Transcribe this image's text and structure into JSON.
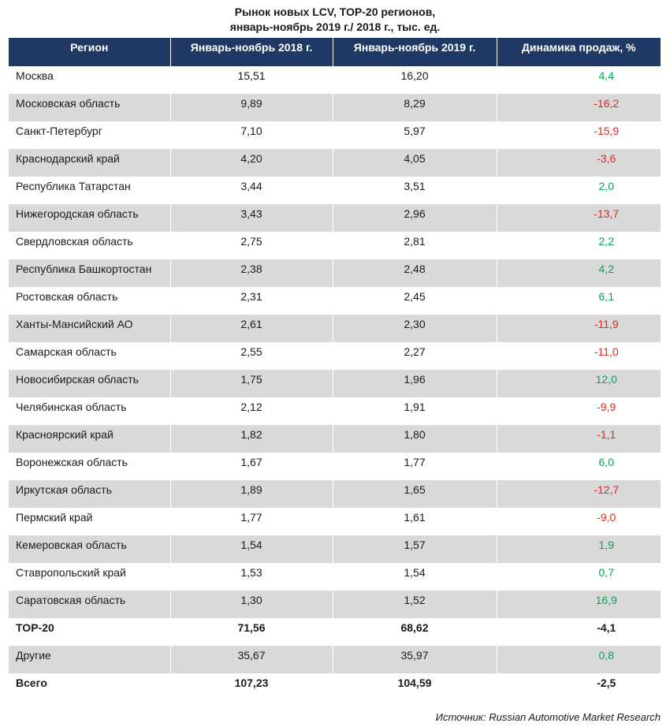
{
  "title": {
    "line1": "Рынок новых LCV, TOP-20 регионов,",
    "line2": "январь-ноябрь 2019 г./ 2018 г., тыс. ед."
  },
  "colors": {
    "header_bg": "#1f3864",
    "row_alt_bg": "#d9d9d9",
    "positive": "#00a651",
    "negative": "#e0281e"
  },
  "table": {
    "headers": [
      "Регион",
      "Январь-ноябрь 2018 г.",
      "Январь-ноябрь 2019 г.",
      "Динамика продаж, %"
    ],
    "rows": [
      {
        "region": "Москва",
        "y2018": "15,51",
        "y2019": "16,20",
        "dynamics": "4,4",
        "sign": "pos"
      },
      {
        "region": "Московская область",
        "y2018": "9,89",
        "y2019": "8,29",
        "dynamics": "-16,2",
        "sign": "neg"
      },
      {
        "region": "Санкт-Петербург",
        "y2018": "7,10",
        "y2019": "5,97",
        "dynamics": "-15,9",
        "sign": "neg"
      },
      {
        "region": "Краснодарский край",
        "y2018": "4,20",
        "y2019": "4,05",
        "dynamics": "-3,6",
        "sign": "neg"
      },
      {
        "region": "Республика Татарстан",
        "y2018": "3,44",
        "y2019": "3,51",
        "dynamics": "2,0",
        "sign": "pos"
      },
      {
        "region": "Нижегородская область",
        "y2018": "3,43",
        "y2019": "2,96",
        "dynamics": "-13,7",
        "sign": "neg"
      },
      {
        "region": "Свердловская область",
        "y2018": "2,75",
        "y2019": "2,81",
        "dynamics": "2,2",
        "sign": "pos"
      },
      {
        "region": "Республика Башкортостан",
        "y2018": "2,38",
        "y2019": "2,48",
        "dynamics": "4,2",
        "sign": "pos"
      },
      {
        "region": "Ростовская область",
        "y2018": "2,31",
        "y2019": "2,45",
        "dynamics": "6,1",
        "sign": "pos"
      },
      {
        "region": "Ханты-Мансийский АО",
        "y2018": "2,61",
        "y2019": "2,30",
        "dynamics": "-11,9",
        "sign": "neg"
      },
      {
        "region": "Самарская область",
        "y2018": "2,55",
        "y2019": "2,27",
        "dynamics": "-11,0",
        "sign": "neg"
      },
      {
        "region": "Новосибирская область",
        "y2018": "1,75",
        "y2019": "1,96",
        "dynamics": "12,0",
        "sign": "pos"
      },
      {
        "region": "Челябинская область",
        "y2018": "2,12",
        "y2019": "1,91",
        "dynamics": "-9,9",
        "sign": "neg"
      },
      {
        "region": "Красноярский край",
        "y2018": "1,82",
        "y2019": "1,80",
        "dynamics": "-1,1",
        "sign": "neg"
      },
      {
        "region": "Воронежская область",
        "y2018": "1,67",
        "y2019": "1,77",
        "dynamics": "6,0",
        "sign": "pos"
      },
      {
        "region": "Иркутская область",
        "y2018": "1,89",
        "y2019": "1,65",
        "dynamics": "-12,7",
        "sign": "neg"
      },
      {
        "region": "Пермский край",
        "y2018": "1,77",
        "y2019": "1,61",
        "dynamics": "-9,0",
        "sign": "neg"
      },
      {
        "region": "Кемеровская область",
        "y2018": "1,54",
        "y2019": "1,57",
        "dynamics": "1,9",
        "sign": "pos"
      },
      {
        "region": "Ставропольский край",
        "y2018": "1,53",
        "y2019": "1,54",
        "dynamics": "0,7",
        "sign": "pos"
      },
      {
        "region": "Саратовская область",
        "y2018": "1,30",
        "y2019": "1,52",
        "dynamics": "16,9",
        "sign": "pos"
      },
      {
        "region": "TOP-20",
        "y2018": "71,56",
        "y2019": "68,62",
        "dynamics": "-4,1",
        "sign": "neu",
        "bold": true
      },
      {
        "region": "Другие",
        "y2018": "35,67",
        "y2019": "35,97",
        "dynamics": "0,8",
        "sign": "pos"
      },
      {
        "region": "Всего",
        "y2018": "107,23",
        "y2019": "104,59",
        "dynamics": "-2,5",
        "sign": "neu",
        "bold": true
      }
    ]
  },
  "source": {
    "label": "Источник:",
    "value": "Russian Automotive Market Research"
  }
}
